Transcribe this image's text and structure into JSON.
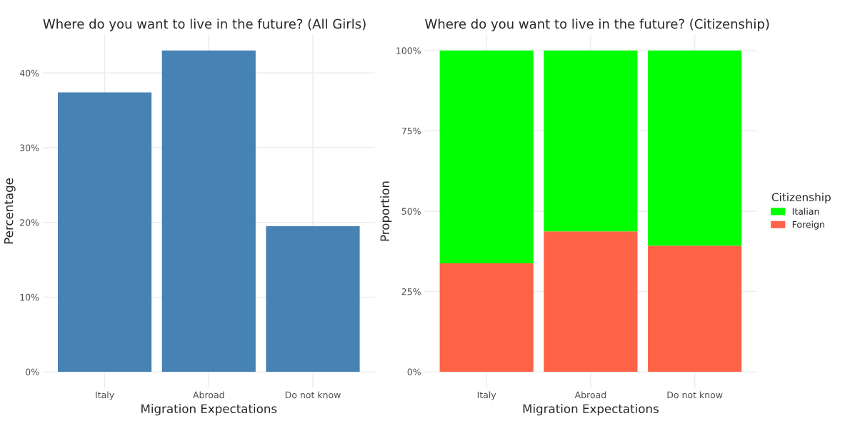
{
  "chart_data": [
    {
      "type": "bar",
      "title": "Where do you want to live in the future? (All Girls)",
      "xlabel": "Migration Expectations",
      "ylabel": "Percentage",
      "categories": [
        "Italy",
        "Abroad",
        "Do not know"
      ],
      "values": [
        37.4,
        43.0,
        19.5
      ],
      "color": "#4682b4",
      "ylim": [
        -2.15,
        45.15
      ],
      "yticks": [
        {
          "value": 0,
          "label": "0%"
        },
        {
          "value": 10,
          "label": "10%"
        },
        {
          "value": 20,
          "label": "20%"
        },
        {
          "value": 30,
          "label": "30%"
        },
        {
          "value": 40,
          "label": "40%"
        }
      ],
      "grid": true,
      "legend": false
    },
    {
      "type": "bar",
      "title": "Where do you want to live in the future? (Citizenship)",
      "xlabel": "Migration Expectations",
      "ylabel": "Proportion",
      "categories": [
        "Italy",
        "Abroad",
        "Do not know"
      ],
      "stacked": true,
      "series": [
        {
          "name": "Foreign",
          "color": "#ff6347",
          "values": [
            33.8,
            43.7,
            39.3
          ]
        },
        {
          "name": "Italian",
          "color": "#00ff00",
          "values": [
            66.2,
            56.3,
            60.7
          ]
        }
      ],
      "ylim": [
        -5,
        105
      ],
      "yticks": [
        {
          "value": 0,
          "label": "0%"
        },
        {
          "value": 25,
          "label": "25%"
        },
        {
          "value": 50,
          "label": "50%"
        },
        {
          "value": 75,
          "label": "75%"
        },
        {
          "value": 100,
          "label": "100%"
        }
      ],
      "grid": true,
      "legend": "right",
      "legend_title": "Citizenship"
    }
  ]
}
